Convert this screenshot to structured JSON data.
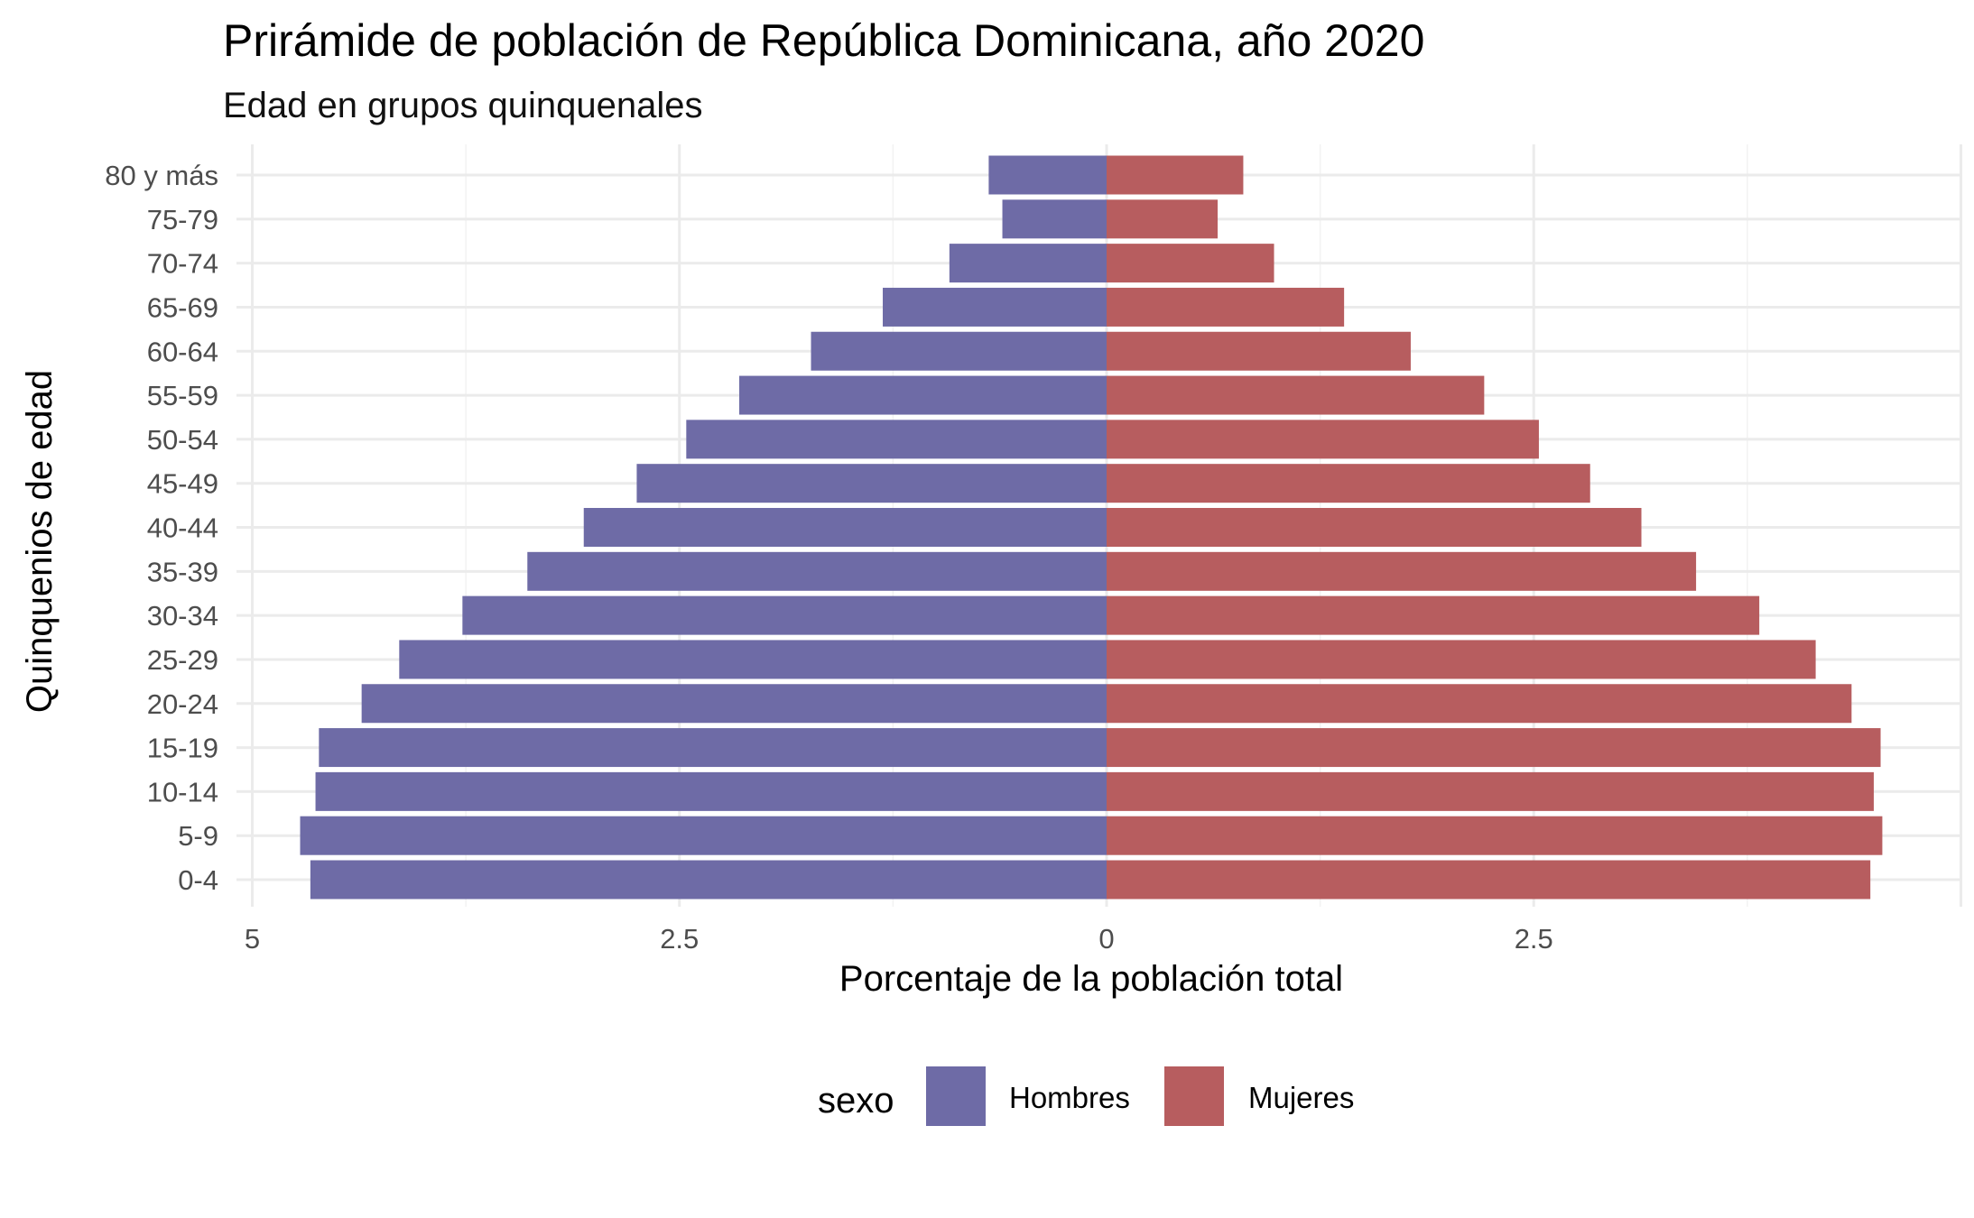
{
  "chart_data": {
    "type": "bar",
    "orientation": "horizontal",
    "title": "Prirámide de población de República Dominicana, año 2020",
    "subtitle": "Edad en grupos quinquenales",
    "xlabel": "Porcentaje de la población total",
    "ylabel": "Quinquenios de edad",
    "xlim": [
      -5.05,
      5.05
    ],
    "x_ticks": [
      {
        "value": -5,
        "label": "5"
      },
      {
        "value": -2.5,
        "label": "2.5"
      },
      {
        "value": 0,
        "label": "0"
      },
      {
        "value": 2.5,
        "label": "2.5"
      },
      {
        "value": 5,
        "label": ""
      }
    ],
    "grid": true,
    "legend": {
      "title": "sexo",
      "position": "bottom"
    },
    "categories": [
      "0-4",
      "5-9",
      "10-14",
      "15-19",
      "20-24",
      "25-29",
      "30-34",
      "35-39",
      "40-44",
      "45-49",
      "50-54",
      "55-59",
      "60-64",
      "65-69",
      "70-74",
      "75-79",
      "80 y más"
    ],
    "series": [
      {
        "name": "Hombres",
        "color": "#6e6ba6",
        "side": "left",
        "values": [
          4.66,
          4.72,
          4.63,
          4.61,
          4.36,
          4.14,
          3.77,
          3.39,
          3.06,
          2.75,
          2.46,
          2.15,
          1.73,
          1.31,
          0.92,
          0.61,
          0.69
        ]
      },
      {
        "name": "Mujeres",
        "color": "#b75d5f",
        "side": "right",
        "values": [
          4.47,
          4.54,
          4.49,
          4.53,
          4.36,
          4.15,
          3.82,
          3.45,
          3.13,
          2.83,
          2.53,
          2.21,
          1.78,
          1.39,
          0.98,
          0.65,
          0.8
        ]
      }
    ]
  }
}
